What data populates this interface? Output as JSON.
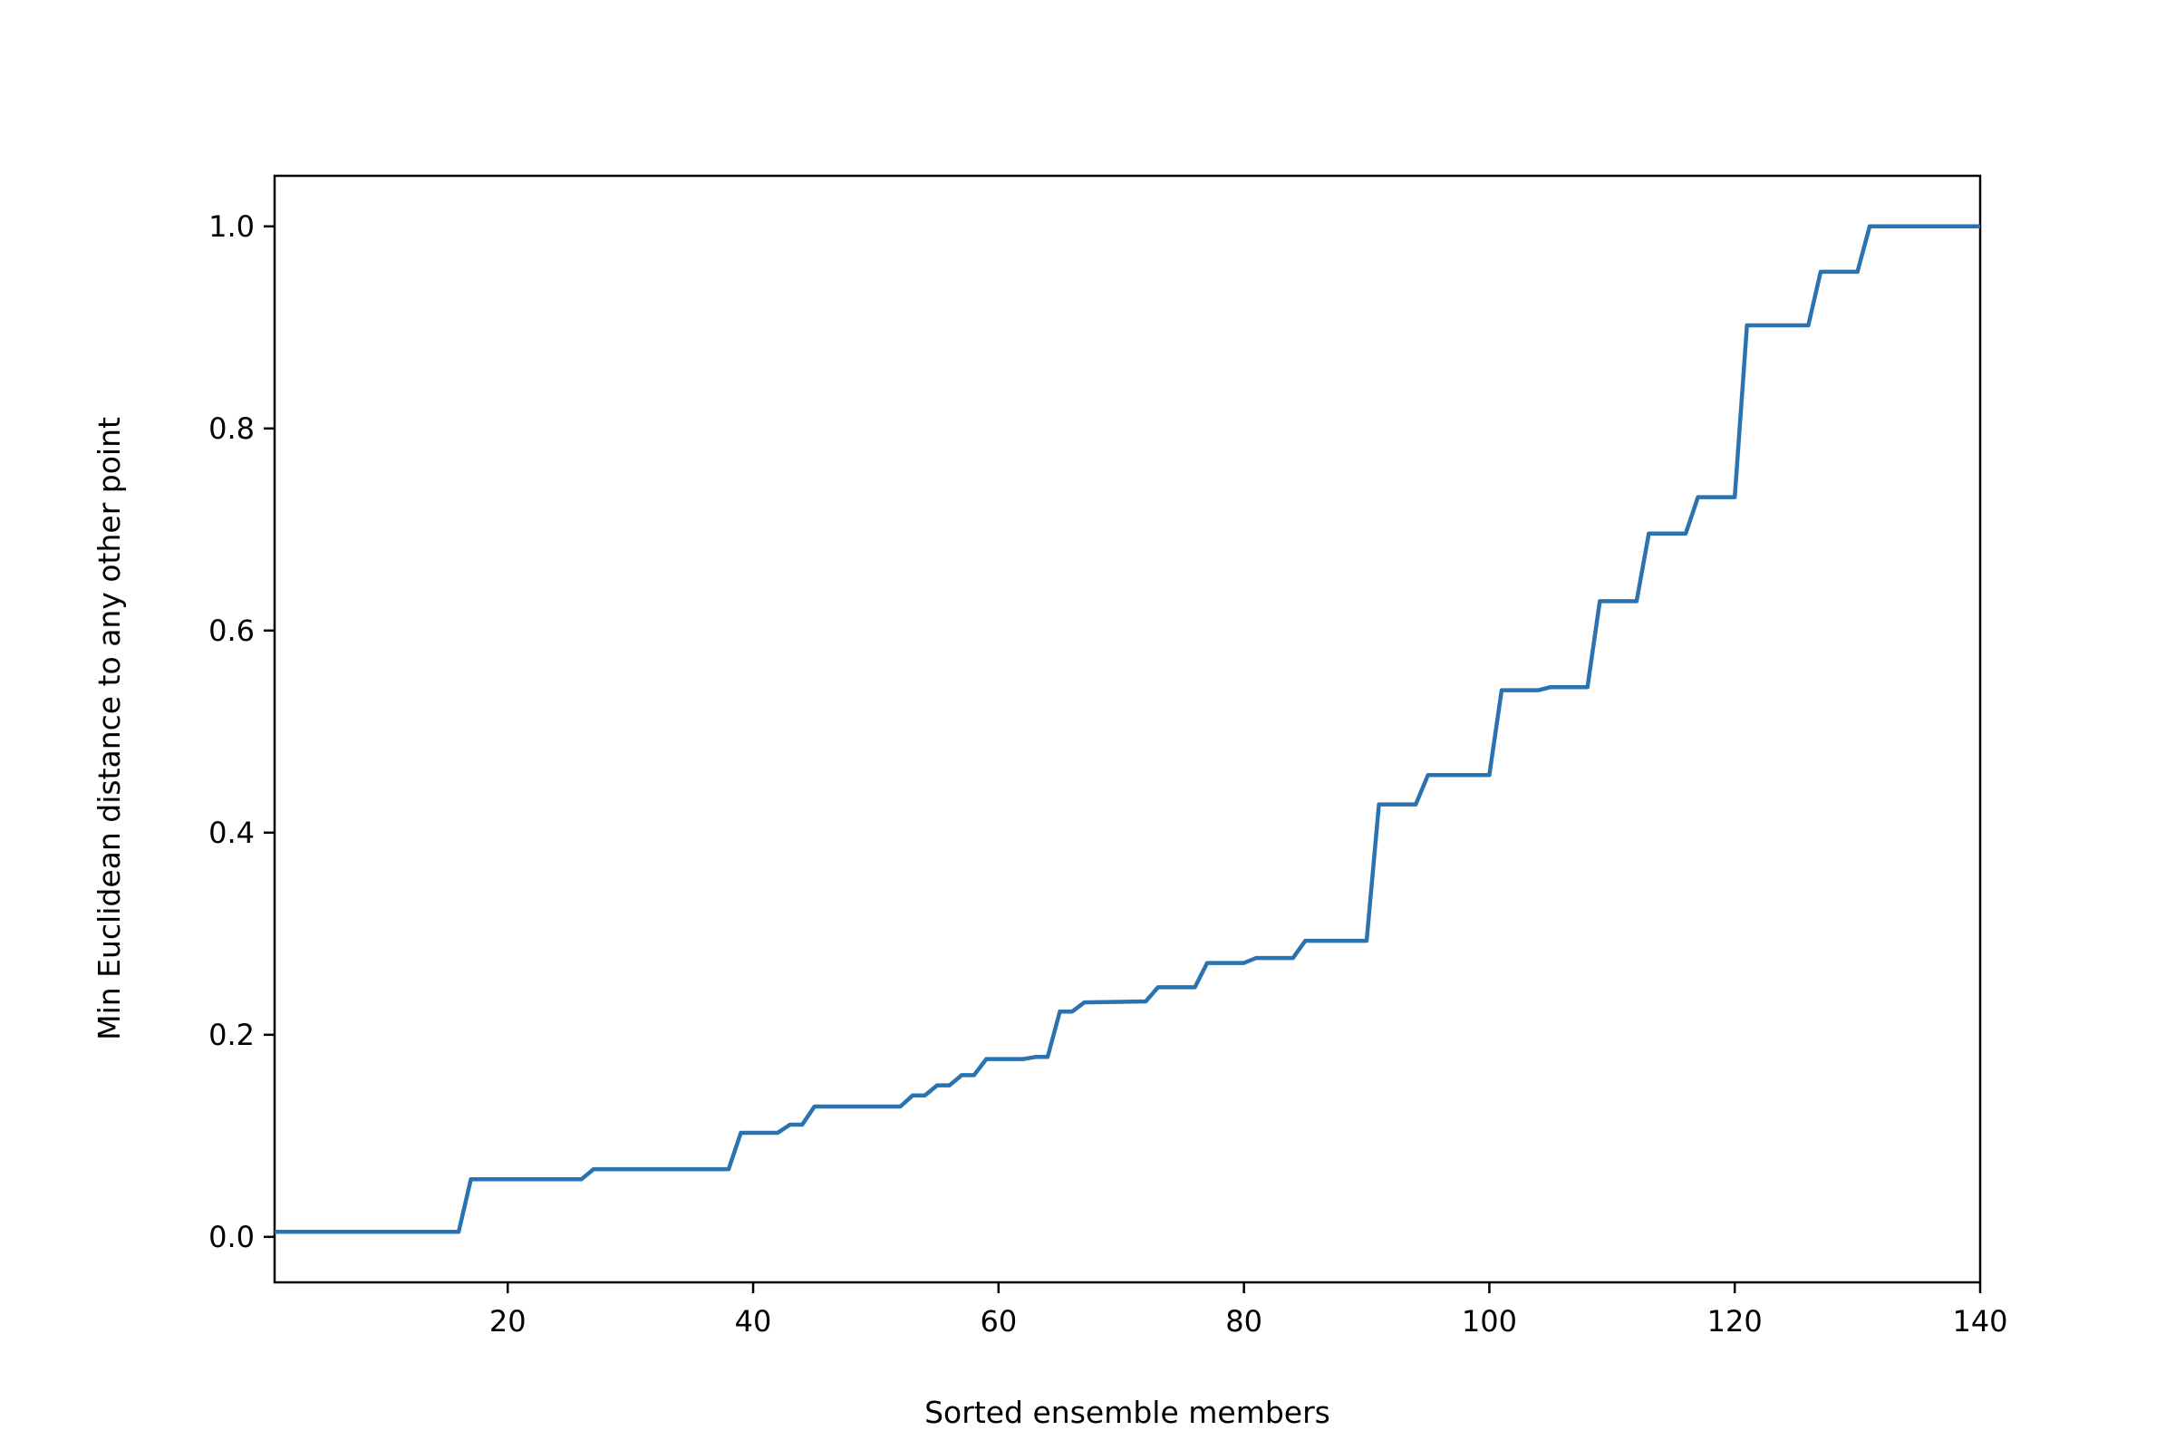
{
  "chart_data": {
    "type": "line",
    "title": "",
    "xlabel": "Sorted ensemble members",
    "ylabel": "Min Euclidean distance to any other point",
    "xlim": [
      1,
      140
    ],
    "ylim": [
      -0.045,
      1.05
    ],
    "xticks": [
      20,
      40,
      60,
      80,
      100,
      120,
      140
    ],
    "yticks": [
      0.0,
      0.2,
      0.4,
      0.6,
      0.8,
      1.0
    ],
    "xtick_labels": [
      "20",
      "40",
      "60",
      "80",
      "100",
      "120",
      "140"
    ],
    "ytick_labels": [
      "0.0",
      "0.2",
      "0.4",
      "0.6",
      "0.8",
      "1.0"
    ],
    "grid": false,
    "legend": "none",
    "line_color": "#2a72b0",
    "series": [
      {
        "x": [
          1,
          16,
          17,
          26,
          27,
          38,
          39,
          42,
          43,
          44,
          45,
          52,
          53,
          54,
          55,
          56,
          57,
          58,
          59,
          62,
          63,
          64,
          65,
          66,
          67,
          72,
          73,
          76,
          77,
          80,
          81,
          84,
          85,
          90,
          91,
          94,
          95,
          100,
          101,
          104,
          105,
          108,
          109,
          112,
          113,
          116,
          117,
          120,
          121,
          126,
          127,
          130,
          131,
          140
        ],
        "y": [
          0.005,
          0.005,
          0.057,
          0.057,
          0.067,
          0.067,
          0.103,
          0.103,
          0.111,
          0.111,
          0.129,
          0.129,
          0.14,
          0.14,
          0.15,
          0.15,
          0.16,
          0.16,
          0.176,
          0.176,
          0.178,
          0.178,
          0.223,
          0.223,
          0.232,
          0.233,
          0.247,
          0.247,
          0.271,
          0.271,
          0.276,
          0.276,
          0.293,
          0.293,
          0.428,
          0.428,
          0.457,
          0.457,
          0.541,
          0.541,
          0.544,
          0.544,
          0.629,
          0.629,
          0.696,
          0.696,
          0.732,
          0.732,
          0.902,
          0.902,
          0.955,
          0.955,
          1.0,
          1.0
        ]
      }
    ]
  }
}
